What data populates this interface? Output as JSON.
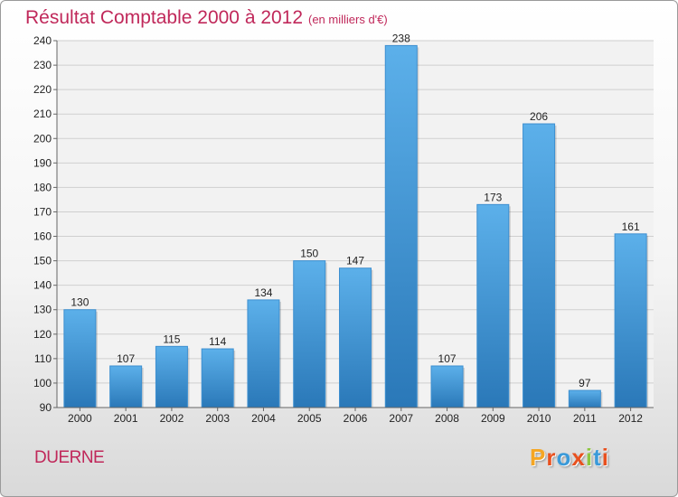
{
  "chart_data": {
    "type": "bar",
    "title": "Résultat Comptable 2000 à 2012",
    "subtitle": "(en milliers d'€)",
    "categories": [
      "2000",
      "2001",
      "2002",
      "2003",
      "2004",
      "2005",
      "2006",
      "2007",
      "2008",
      "2009",
      "2010",
      "2011",
      "2012"
    ],
    "values": [
      130,
      107,
      115,
      114,
      134,
      150,
      147,
      238,
      107,
      173,
      206,
      97,
      161
    ],
    "ylim": [
      90,
      240
    ],
    "yticks": [
      90,
      100,
      110,
      120,
      130,
      140,
      150,
      160,
      170,
      180,
      190,
      200,
      210,
      220,
      230,
      240
    ],
    "grid": true,
    "bar_color": "#4a9fdf"
  },
  "place_name": "DUERNE",
  "logo": {
    "letters": [
      "P",
      "r",
      "o",
      "x",
      "i",
      "t",
      "i"
    ],
    "colors": [
      "#f5a623",
      "#e8501e",
      "#3a9ad9",
      "#e8501e",
      "#8dc63f",
      "#3a9ad9",
      "#e8501e"
    ]
  }
}
